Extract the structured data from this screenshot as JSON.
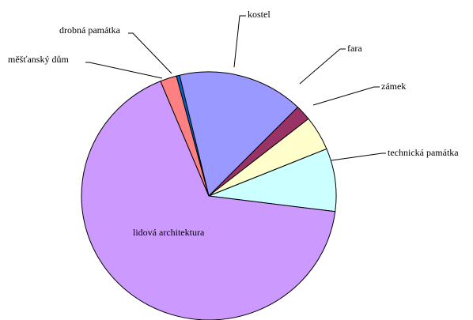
{
  "chart_data": {
    "type": "pie",
    "title": "",
    "start_angle_deg": -103.3,
    "slices": [
      {
        "label": "kostel",
        "value": 16.0,
        "color": "#9999ff"
      },
      {
        "label": "fara",
        "value": 2.0,
        "color": "#993366"
      },
      {
        "label": "zámek",
        "value": 4.5,
        "color": "#ffffcc"
      },
      {
        "label": "technická památka",
        "value": 8.2,
        "color": "#ccffff"
      },
      {
        "label": "lidová architektura",
        "value": 66.8,
        "color": "#cc99ff"
      },
      {
        "label": "měšťanský dům",
        "value": 2.1,
        "color": "#ff8080"
      },
      {
        "label": "drobná památka",
        "value": 0.4,
        "color": "#0066cc"
      }
    ]
  }
}
